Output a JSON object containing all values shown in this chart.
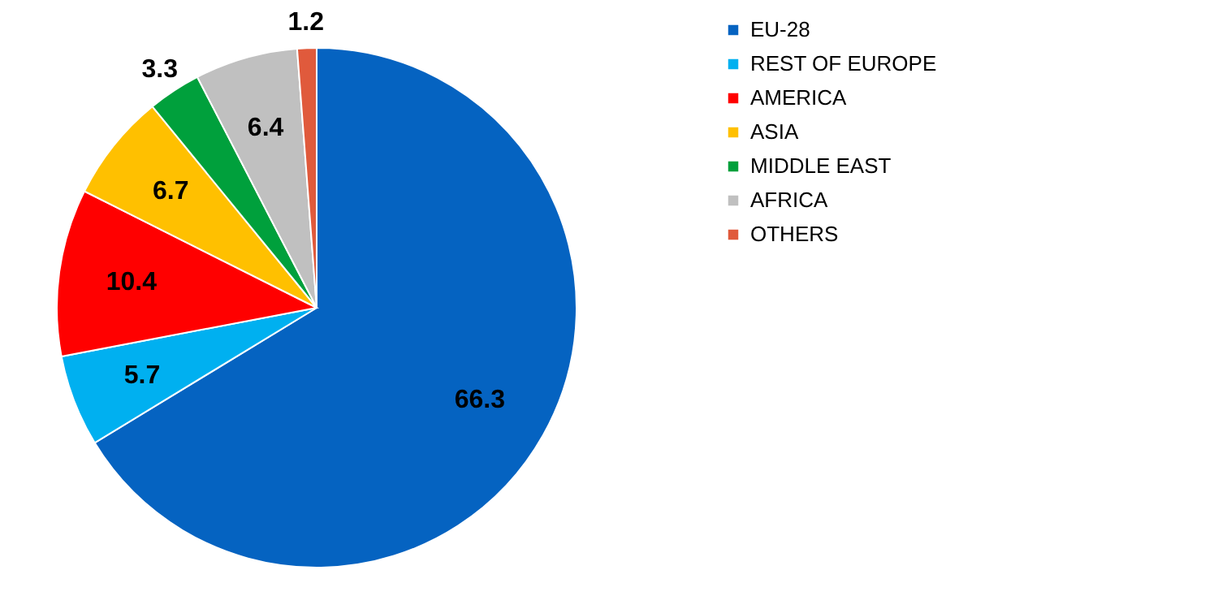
{
  "chart_data": {
    "type": "pie",
    "categories": [
      "EU-28",
      "REST OF EUROPE",
      "AMERICA",
      "ASIA",
      "MIDDLE EAST",
      "AFRICA",
      "OTHERS"
    ],
    "values": [
      66.3,
      5.7,
      10.4,
      6.7,
      3.3,
      6.4,
      1.2
    ],
    "colors": [
      "#0563c1",
      "#00b0f0",
      "#ff0000",
      "#ffc000",
      "#00a03c",
      "#c0c0c0",
      "#e05a3c"
    ],
    "data_labels": true,
    "legend": "right"
  }
}
